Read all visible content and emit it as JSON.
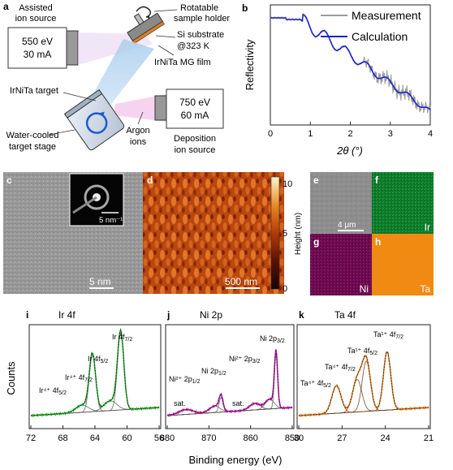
{
  "panel_a": {
    "letter": "a",
    "assisted_label": [
      "Assisted",
      "ion source"
    ],
    "assisted_box": [
      "550 eV",
      "30 mA"
    ],
    "holder_label": [
      "Rotatable",
      "sample holder"
    ],
    "substrate_label": [
      "Si substrate",
      "@323 K"
    ],
    "film_label": "IrNiTa MG film",
    "target_label": "IrNiTa target",
    "stage_label": [
      "Water-cooled",
      "target stage"
    ],
    "argon_label": [
      "Argon",
      "ions"
    ],
    "deposition_box": [
      "750 eV",
      "60 mA"
    ],
    "deposition_label": [
      "Deposition",
      "ion source"
    ]
  },
  "panel_b": {
    "letter": "b",
    "chart_data": {
      "type": "line",
      "xlabel": "2θ (°)",
      "ylabel": "Reflectivity",
      "xlim": [
        0,
        4
      ],
      "xticks": [
        0,
        1,
        2,
        3,
        4
      ],
      "legend_position": "top-right",
      "series": [
        {
          "name": "Measurement",
          "color": "#9a9a9a"
        },
        {
          "name": "Calculation",
          "color": "#1a22c8"
        }
      ]
    }
  },
  "panel_c": {
    "letter": "c",
    "inset_scale": "5 nm⁻¹",
    "scale": "5 nm"
  },
  "panel_d": {
    "letter": "d",
    "scale": "500 nm",
    "colorbar_label": "Height (nm)",
    "colorbar_ticks": [
      "10",
      "5",
      "0"
    ]
  },
  "panel_e": {
    "letter": "e",
    "scale": "4 μm"
  },
  "panel_f": {
    "letter": "f",
    "element": "Ir"
  },
  "panel_g": {
    "letter": "g",
    "element": "Ni"
  },
  "panel_h": {
    "letter": "h",
    "element": "Ta"
  },
  "xps": {
    "ylabel": "Counts",
    "xlabel": "Binding energy (eV)",
    "panels": [
      {
        "letter": "i",
        "title": "Ir 4f",
        "ticks": [
          "72",
          "68",
          "64",
          "60",
          "56"
        ],
        "labels": [
          "Ir 4f",
          "Ir 4f",
          "Ir⁴⁺ 4f",
          "Ir⁴⁺ 4f"
        ],
        "subscripts": [
          "7/2",
          "5/2",
          "7/2",
          "5/2"
        ]
      },
      {
        "letter": "j",
        "title": "Ni 2p",
        "ticks": [
          "880",
          "870",
          "860",
          "850"
        ],
        "labels": [
          "Ni 2p",
          "Ni²⁺ 2p",
          "Ni 2p",
          "Ni²⁺ 2p",
          "sat.",
          "sat."
        ],
        "subscripts": [
          "3/2",
          "3/2",
          "1/2",
          "1/2"
        ]
      },
      {
        "letter": "k",
        "title": "Ta 4f",
        "ticks": [
          "30",
          "27",
          "24",
          "21"
        ],
        "labels": [
          "Ta¹⁺ 4f",
          "Ta¹⁺ 4f",
          "Ta⁴⁺ 4f",
          "Ta⁴⁺ 4f"
        ],
        "subscripts": [
          "7/2",
          "5/2",
          "7/2",
          "5/2"
        ]
      }
    ]
  }
}
